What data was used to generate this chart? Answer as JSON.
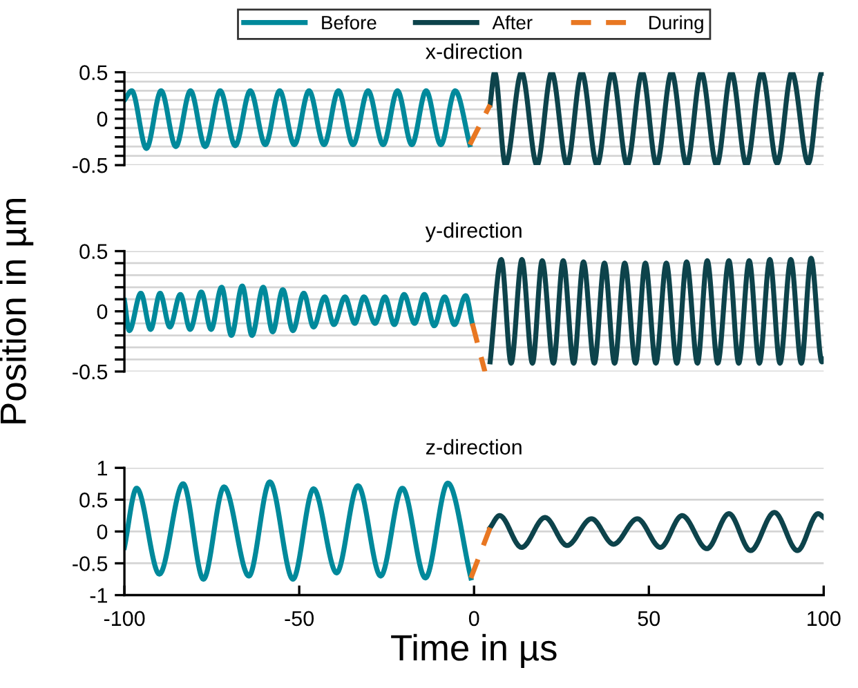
{
  "chart_data": [
    {
      "type": "line",
      "title": "x-direction",
      "xlim": [
        -100,
        100
      ],
      "ylim": [
        -0.5,
        0.5
      ],
      "yticks": [
        -0.5,
        {
          "value": -0.4,
          "label": null
        },
        {
          "value": -0.3,
          "label": null
        },
        {
          "value": -0.2,
          "label": null
        },
        {
          "value": -0.1,
          "label": null
        },
        0,
        {
          "value": 0.1,
          "label": null
        },
        {
          "value": 0.2,
          "label": null
        },
        {
          "value": 0.3,
          "label": null
        },
        {
          "value": 0.4,
          "label": null
        },
        0.5
      ],
      "tick_labels": "y",
      "grid": "y",
      "legend": "top",
      "series": [
        {
          "name": "Before",
          "color": "#00899b",
          "line_style": "solid",
          "x": [
            -100,
            -97.9,
            -93.7,
            -89.5,
            -85.3,
            -81.1,
            -76.9,
            -72.6,
            -68.3,
            -64.0,
            -59.7,
            -55.6,
            -51.4,
            -47.2,
            -42.9,
            -38.8,
            -34.6,
            -30.3,
            -26.0,
            -21.9,
            -17.8,
            -13.7,
            -9.5,
            -5.4,
            -1.2
          ],
          "values": [
            0.2,
            0.3,
            -0.32,
            0.3,
            -0.3,
            0.3,
            -0.3,
            0.3,
            -0.29,
            0.3,
            -0.28,
            0.3,
            -0.28,
            0.3,
            -0.28,
            0.3,
            -0.28,
            0.3,
            -0.28,
            0.3,
            -0.28,
            0.3,
            -0.28,
            0.3,
            -0.28
          ]
        },
        {
          "name": "After",
          "color": "#0d434b",
          "line_style": "solid",
          "x": [
            4.6,
            5.9,
            9.0,
            13.6,
            18.0,
            22.2,
            26.6,
            30.8,
            35.2,
            39.5,
            43.8,
            48.1,
            52.2,
            56.5,
            60.8,
            65.0,
            69.4,
            73.6,
            77.9,
            82.3,
            86.7,
            90.9,
            95.6,
            99.5,
            100
          ],
          "values": [
            0.15,
            0.5,
            -0.5,
            0.5,
            -0.5,
            0.5,
            -0.5,
            0.5,
            -0.5,
            0.5,
            -0.5,
            0.5,
            -0.5,
            0.5,
            -0.5,
            0.5,
            -0.5,
            0.5,
            -0.5,
            0.5,
            -0.48,
            0.5,
            -0.48,
            0.5,
            0.49
          ]
        },
        {
          "name": "During",
          "color": "#e87722",
          "line_style": "dashed",
          "x": [
            -1.2,
            4.6
          ],
          "values": [
            -0.28,
            0.15
          ]
        }
      ]
    },
    {
      "type": "line",
      "title": "y-direction",
      "ylabel": "Position in µm",
      "xlim": [
        -100,
        100
      ],
      "ylim": [
        -0.5,
        0.5
      ],
      "yticks": [
        -0.5,
        {
          "value": -0.4,
          "label": null
        },
        {
          "value": -0.3,
          "label": null
        },
        {
          "value": -0.2,
          "label": null
        },
        {
          "value": -0.1,
          "label": null
        },
        0,
        {
          "value": 0.1,
          "label": null
        },
        {
          "value": 0.2,
          "label": null
        },
        {
          "value": 0.3,
          "label": null
        },
        {
          "value": 0.4,
          "label": null
        },
        0.5
      ],
      "tick_labels": "y",
      "grid": "y",
      "series": [
        {
          "color": "#00899b",
          "line_style": "solid",
          "x": [
            -100,
            -98.6,
            -95.3,
            -92.5,
            -89.8,
            -87.0,
            -84.0,
            -81.2,
            -78.0,
            -75.2,
            -72.2,
            -69.4,
            -66.3,
            -63.5,
            -60.3,
            -57.6,
            -54.7,
            -51.8,
            -48.7,
            -45.9,
            -42.7,
            -40.1,
            -36.9,
            -34.1,
            -31.5,
            -28.3,
            -25.5,
            -22.8,
            -20.0,
            -17.0,
            -14.2,
            -11.4,
            -8.4,
            -5.6,
            -2.4,
            -0.5
          ],
          "values": [
            0.09,
            -0.16,
            0.15,
            -0.15,
            0.15,
            -0.13,
            0.14,
            -0.15,
            0.16,
            -0.15,
            0.2,
            -0.2,
            0.21,
            -0.2,
            0.2,
            -0.17,
            0.18,
            -0.16,
            0.15,
            -0.13,
            0.12,
            -0.11,
            0.12,
            -0.1,
            0.12,
            -0.1,
            0.12,
            -0.11,
            0.14,
            -0.1,
            0.14,
            -0.12,
            0.12,
            -0.11,
            0.13,
            -0.1
          ]
        },
        {
          "color": "#0d434b",
          "line_style": "solid",
          "x": [
            4.6,
            7.8,
            10.6,
            13.7,
            16.7,
            19.5,
            22.7,
            25.5,
            28.5,
            31.3,
            34.4,
            37.3,
            40.2,
            43.1,
            46.2,
            49.0,
            52.0,
            55.0,
            58.0,
            60.8,
            63.9,
            66.7,
            69.7,
            72.9,
            75.7,
            78.7,
            81.6,
            84.6,
            87.5,
            90.6,
            93.6,
            96.4,
            99.5,
            100
          ],
          "values": [
            -0.42,
            0.43,
            -0.43,
            0.43,
            -0.43,
            0.42,
            -0.43,
            0.42,
            -0.43,
            0.41,
            -0.43,
            0.4,
            -0.43,
            0.4,
            -0.43,
            0.4,
            -0.43,
            0.4,
            -0.43,
            0.41,
            -0.43,
            0.42,
            -0.43,
            0.42,
            -0.43,
            0.42,
            -0.43,
            0.43,
            -0.43,
            0.43,
            -0.43,
            0.44,
            -0.42,
            -0.4
          ]
        },
        {
          "color": "#e87722",
          "line_style": "dashed",
          "x": [
            -0.5,
            3.1
          ],
          "values": [
            -0.1,
            -0.5
          ]
        }
      ]
    },
    {
      "type": "line",
      "title": "z-direction",
      "xlabel": "Time in µs",
      "xlim": [
        -100,
        100
      ],
      "xticks": [
        -100,
        -50,
        0,
        50,
        100
      ],
      "ylim": [
        -1,
        1
      ],
      "yticks": [
        -1,
        -0.5,
        0,
        0.5,
        1
      ],
      "grid": "y",
      "series": [
        {
          "color": "#00899b",
          "line_style": "solid",
          "x": [
            -100,
            -96.5,
            -90.0,
            -83.2,
            -77.4,
            -71.5,
            -64.4,
            -58.4,
            -51.8,
            -45.9,
            -39.3,
            -33.2,
            -26.7,
            -20.5,
            -13.9,
            -7.5,
            -0.9
          ],
          "values": [
            -0.25,
            0.68,
            -0.67,
            0.75,
            -0.75,
            0.7,
            -0.7,
            0.78,
            -0.75,
            0.67,
            -0.65,
            0.72,
            -0.7,
            0.68,
            -0.73,
            0.76,
            -0.73
          ]
        },
        {
          "color": "#0d434b",
          "line_style": "solid",
          "x": [
            4.6,
            7.3,
            13.6,
            20.3,
            26.6,
            33.6,
            39.9,
            46.7,
            53.3,
            59.5,
            66.6,
            72.9,
            79.1,
            85.9,
            92.5,
            98.4,
            100
          ],
          "values": [
            0.06,
            0.25,
            -0.25,
            0.22,
            -0.22,
            0.2,
            -0.2,
            0.2,
            -0.25,
            0.25,
            -0.27,
            0.28,
            -0.3,
            0.3,
            -0.3,
            0.28,
            0.22
          ]
        },
        {
          "color": "#e87722",
          "line_style": "dashed",
          "x": [
            -0.9,
            4.6
          ],
          "values": [
            -0.73,
            0.06
          ]
        }
      ]
    }
  ]
}
